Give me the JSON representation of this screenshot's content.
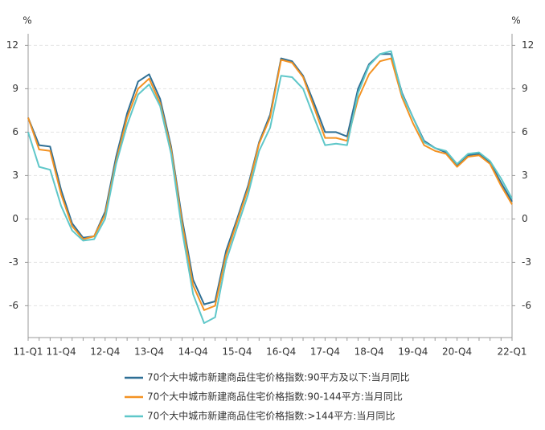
{
  "chart_data": {
    "type": "line",
    "y_unit_left": "%",
    "y_unit_right": "%",
    "categories": [
      "11-Q1",
      null,
      null,
      "11-Q4",
      null,
      null,
      null,
      "12-Q4",
      null,
      null,
      null,
      "13-Q4",
      null,
      null,
      null,
      "14-Q4",
      null,
      null,
      null,
      "15-Q4",
      null,
      null,
      null,
      "16-Q4",
      null,
      null,
      null,
      "17-Q4",
      null,
      null,
      null,
      "18-Q4",
      null,
      null,
      null,
      "19-Q4",
      null,
      null,
      null,
      "20-Q4",
      null,
      null,
      null,
      null,
      "22-Q1"
    ],
    "series": [
      {
        "name": "70个大中城市新建商品住宅价格指数:90平方及以下:当月同比",
        "color": "#2e6f95",
        "values": [
          7.0,
          5.1,
          5.0,
          2.0,
          -0.3,
          -1.3,
          -1.2,
          0.5,
          4.3,
          7.3,
          9.5,
          10.0,
          8.3,
          5.0,
          0,
          -4.2,
          -5.9,
          -5.7,
          -2.2,
          0,
          2.3,
          5.3,
          7.2,
          11.1,
          10.9,
          9.9,
          8.0,
          6.0,
          6.0,
          5.7,
          9.0,
          10.7,
          11.4,
          11.4,
          8.7,
          7.0,
          5.4,
          4.9,
          4.6,
          3.7,
          4.4,
          4.5,
          3.9,
          2.5,
          1.2
        ]
      },
      {
        "name": "70个大中城市新建商品住宅价格指数:90-144平方:当月同比",
        "color": "#f39222",
        "values": [
          7.0,
          4.8,
          4.7,
          1.7,
          -0.5,
          -1.4,
          -1.2,
          0.3,
          4.0,
          7.0,
          9.0,
          9.7,
          8.0,
          4.8,
          -0.3,
          -4.6,
          -6.3,
          -6.0,
          -2.5,
          -0.2,
          2.1,
          5.2,
          7.0,
          11.0,
          10.8,
          9.8,
          7.7,
          5.6,
          5.6,
          5.4,
          8.3,
          10.0,
          10.9,
          11.1,
          8.4,
          6.6,
          5.1,
          4.7,
          4.5,
          3.6,
          4.3,
          4.4,
          3.8,
          2.3,
          1.0
        ]
      },
      {
        "name": "70个大中城市新建商品住宅价格指数:>144平方:当月同比",
        "color": "#5fc7c9",
        "values": [
          6.0,
          3.6,
          3.4,
          0.9,
          -0.8,
          -1.5,
          -1.4,
          0,
          3.8,
          6.5,
          8.6,
          9.3,
          7.8,
          4.5,
          -0.8,
          -5.2,
          -7.2,
          -6.8,
          -2.9,
          -0.6,
          1.7,
          4.7,
          6.3,
          9.9,
          9.8,
          9.0,
          7.0,
          5.1,
          5.2,
          5.1,
          8.7,
          10.6,
          11.4,
          11.6,
          8.6,
          7.0,
          5.3,
          4.9,
          4.7,
          3.8,
          4.5,
          4.6,
          4.0,
          2.8,
          1.4
        ]
      }
    ],
    "ylim": [
      -8.2,
      12.8
    ],
    "yticks": [
      -6,
      -3,
      0,
      3,
      6,
      9,
      12
    ],
    "y2lim": [
      -8.2,
      12.8
    ],
    "y2ticks": [
      -6,
      -3,
      0,
      3,
      6,
      9,
      12
    ],
    "grid": true,
    "legend": "bottom"
  }
}
